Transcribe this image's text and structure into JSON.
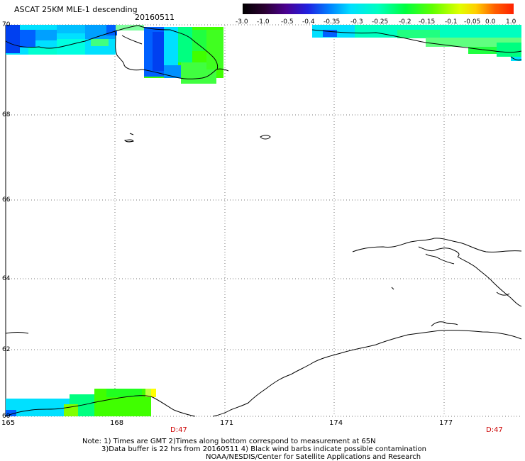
{
  "header": {
    "title": "ASCAT 25KM MLE-1 descending",
    "date": "20160511"
  },
  "legend": {
    "labels": [
      "-3.0",
      "-1.0",
      "-0.5",
      "-0.4",
      "-0.35",
      "-0.3",
      "-0.25",
      "-0.2",
      "-0.15",
      "-0.1",
      "-0.05",
      "0.0",
      "1.0"
    ],
    "colors": [
      "#2a0018",
      "#4b0090",
      "#2020e0",
      "#0060ff",
      "#00a0ff",
      "#00e0ff",
      "#00ffc0",
      "#00ff60",
      "#40ff00",
      "#a0ff00",
      "#ffff00",
      "#ff8000",
      "#ff2000"
    ]
  },
  "axes": {
    "lat_labels": [
      "70",
      "68",
      "66",
      "64",
      "62",
      "60"
    ],
    "lon_labels": [
      "165",
      "168",
      "171",
      "174",
      "177"
    ],
    "time_labels": [
      "D:47",
      "D:47"
    ]
  },
  "notes": {
    "line1": "Note: 1) Times are GMT 2)Times along bottom correspond to measurement at 65N",
    "line2": "3)Data buffer is 22 hrs from 20160511 4) Black wind barbs indicate possible contamination",
    "line3": "NOAA/NESDIS/Center for Satellite Applications and Research"
  }
}
